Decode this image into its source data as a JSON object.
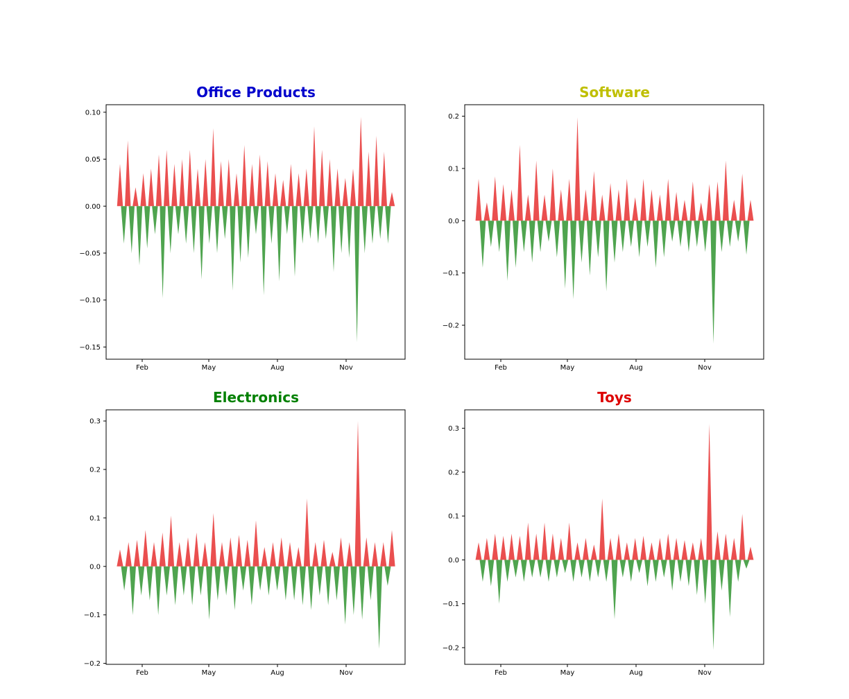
{
  "colors": {
    "positive": "#e83c3c",
    "negative": "#3c9a3c",
    "axis": "#000000"
  },
  "x_ticks": [
    "Feb",
    "May",
    "Aug",
    "Nov"
  ],
  "chart_data": [
    {
      "type": "area",
      "title": "Office Products",
      "title_color": "#0000cc",
      "xlabel": "",
      "ylabel": "",
      "x_range": [
        "Jan 1",
        "Dec 31"
      ],
      "ylim": [
        -0.163,
        0.108
      ],
      "yticks": [
        0.1,
        0.05,
        0.0,
        -0.05,
        -0.1,
        -0.15
      ],
      "ytick_labels": [
        "0.10",
        "0.05",
        "0.00",
        "−0.05",
        "−0.10",
        "−0.15"
      ],
      "series": [
        {
          "values": [
            0.045,
            -0.04,
            0.07,
            -0.05,
            0.02,
            -0.063,
            0.035,
            -0.045,
            0.04,
            -0.03,
            0.055,
            -0.098,
            0.06,
            -0.05,
            0.045,
            -0.03,
            0.05,
            -0.04,
            0.06,
            -0.05,
            0.04,
            -0.078,
            0.05,
            -0.04,
            0.083,
            -0.05,
            0.048,
            -0.035,
            0.05,
            -0.09,
            0.035,
            -0.06,
            0.065,
            -0.055,
            0.045,
            -0.03,
            0.055,
            -0.095,
            0.048,
            -0.04,
            0.035,
            -0.08,
            0.028,
            -0.03,
            0.045,
            -0.075,
            0.035,
            -0.04,
            0.04,
            -0.035,
            0.085,
            -0.04,
            0.06,
            -0.035,
            0.05,
            -0.07,
            0.04,
            -0.05,
            0.03,
            -0.055,
            0.04,
            -0.145,
            0.095,
            -0.05,
            0.058,
            -0.04,
            0.075,
            -0.035,
            0.058,
            -0.04,
            0.015
          ]
        }
      ]
    },
    {
      "type": "area",
      "title": "Software",
      "title_color": "#bfbf00",
      "xlabel": "",
      "ylabel": "",
      "x_range": [
        "Jan 1",
        "Dec 31"
      ],
      "ylim": [
        -0.265,
        0.222
      ],
      "yticks": [
        0.2,
        0.1,
        0.0,
        -0.1,
        -0.2
      ],
      "ytick_labels": [
        "0.2",
        "0.1",
        "0.0",
        "−0.1",
        "−0.2"
      ],
      "series": [
        {
          "values": [
            0.08,
            -0.09,
            0.035,
            -0.05,
            0.085,
            -0.06,
            0.07,
            -0.115,
            0.06,
            -0.09,
            0.145,
            -0.06,
            0.05,
            -0.08,
            0.115,
            -0.06,
            0.05,
            -0.04,
            0.1,
            -0.07,
            0.06,
            -0.13,
            0.08,
            -0.15,
            0.198,
            -0.08,
            0.06,
            -0.105,
            0.095,
            -0.07,
            0.05,
            -0.135,
            0.072,
            -0.08,
            0.06,
            -0.06,
            0.08,
            -0.05,
            0.045,
            -0.07,
            0.08,
            -0.05,
            0.06,
            -0.09,
            0.05,
            -0.07,
            0.08,
            -0.04,
            0.055,
            -0.05,
            0.04,
            -0.06,
            0.075,
            -0.05,
            0.035,
            -0.06,
            0.07,
            -0.235,
            0.075,
            -0.06,
            0.115,
            -0.05,
            0.04,
            -0.04,
            0.09,
            -0.065,
            0.04
          ]
        }
      ]
    },
    {
      "type": "area",
      "title": "Electronics",
      "title_color": "#008000",
      "xlabel": "",
      "ylabel": "",
      "x_range": [
        "Jan 1",
        "Dec 31"
      ],
      "ylim": [
        -0.202,
        0.323
      ],
      "yticks": [
        0.3,
        0.2,
        0.1,
        0.0,
        -0.1,
        -0.2
      ],
      "ytick_labels": [
        "0.3",
        "0.2",
        "0.1",
        "0.0",
        "−0.1",
        "−0.2"
      ],
      "series": [
        {
          "values": [
            0.035,
            -0.05,
            0.05,
            -0.1,
            0.055,
            -0.06,
            0.075,
            -0.07,
            0.05,
            -0.1,
            0.07,
            -0.06,
            0.105,
            -0.08,
            0.05,
            -0.06,
            0.06,
            -0.08,
            0.07,
            -0.06,
            0.05,
            -0.11,
            0.11,
            -0.07,
            0.05,
            -0.06,
            0.06,
            -0.09,
            0.065,
            -0.05,
            0.055,
            -0.08,
            0.095,
            -0.05,
            0.04,
            -0.06,
            0.05,
            -0.05,
            0.06,
            -0.07,
            0.05,
            -0.07,
            0.04,
            -0.08,
            0.14,
            -0.09,
            0.05,
            -0.06,
            0.055,
            -0.08,
            0.03,
            -0.07,
            0.06,
            -0.12,
            0.05,
            -0.1,
            0.3,
            -0.11,
            0.06,
            -0.07,
            0.05,
            -0.17,
            0.05,
            -0.04,
            0.075
          ]
        }
      ]
    },
    {
      "type": "area",
      "title": "Toys",
      "title_color": "#dd0000",
      "xlabel": "",
      "ylabel": "",
      "x_range": [
        "Jan 1",
        "Dec 31"
      ],
      "ylim": [
        -0.238,
        0.342
      ],
      "yticks": [
        0.3,
        0.2,
        0.1,
        0.0,
        -0.1,
        -0.2
      ],
      "ytick_labels": [
        "0.3",
        "0.2",
        "0.1",
        "0.0",
        "−0.1",
        "−0.2"
      ],
      "series": [
        {
          "values": [
            0.04,
            -0.05,
            0.05,
            -0.06,
            0.06,
            -0.1,
            0.055,
            -0.05,
            0.06,
            -0.04,
            0.055,
            -0.05,
            0.085,
            -0.04,
            0.06,
            -0.04,
            0.085,
            -0.05,
            0.06,
            -0.04,
            0.05,
            -0.03,
            0.085,
            -0.05,
            0.04,
            -0.04,
            0.05,
            -0.05,
            0.035,
            -0.04,
            0.14,
            -0.05,
            0.05,
            -0.135,
            0.06,
            -0.04,
            0.04,
            -0.05,
            0.05,
            -0.03,
            0.055,
            -0.06,
            0.04,
            -0.05,
            0.05,
            -0.04,
            0.06,
            -0.07,
            0.05,
            -0.05,
            0.045,
            -0.06,
            0.04,
            -0.08,
            0.05,
            -0.1,
            0.31,
            -0.205,
            0.065,
            -0.07,
            0.06,
            -0.13,
            0.05,
            -0.05,
            0.105,
            -0.02,
            0.03
          ]
        }
      ]
    }
  ]
}
